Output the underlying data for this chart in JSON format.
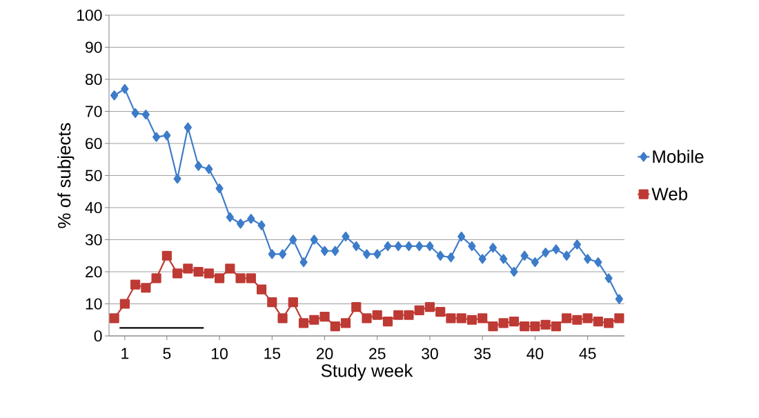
{
  "chart_data": {
    "type": "line",
    "xlabel": "Study week",
    "ylabel": "% of subjects",
    "x": [
      0,
      1,
      2,
      3,
      4,
      5,
      6,
      7,
      8,
      9,
      10,
      11,
      12,
      13,
      14,
      15,
      16,
      17,
      18,
      19,
      20,
      21,
      22,
      23,
      24,
      25,
      26,
      27,
      28,
      29,
      30,
      31,
      32,
      33,
      34,
      35,
      36,
      37,
      38,
      39,
      40,
      41,
      42,
      43,
      44,
      45,
      46,
      47,
      48
    ],
    "xlim": [
      -0.5,
      48.5
    ],
    "xticks": [
      1,
      5,
      10,
      15,
      20,
      25,
      30,
      35,
      40,
      45
    ],
    "ylim": [
      0,
      100
    ],
    "yticks": [
      0,
      10,
      20,
      30,
      40,
      50,
      60,
      70,
      80,
      90,
      100
    ],
    "grid": "y",
    "legend": "right",
    "series": [
      {
        "name": "Mobile",
        "color": "#3d7cc9",
        "marker": "diamond",
        "values": [
          75,
          77,
          69.5,
          69,
          62,
          62.5,
          49,
          65,
          53,
          52,
          46,
          37,
          35,
          36.5,
          34.5,
          25.5,
          25.5,
          30,
          23,
          30,
          26.5,
          26.5,
          31,
          28,
          25.5,
          25.5,
          28,
          28,
          28,
          28,
          28,
          25,
          24.5,
          31,
          28,
          24,
          27.5,
          24,
          20,
          25,
          23,
          26,
          27,
          25,
          28.5,
          24,
          23,
          18,
          11.5
        ]
      },
      {
        "name": "Web",
        "color": "#be3a34",
        "marker": "square",
        "values": [
          5.5,
          10,
          16,
          15,
          18,
          25,
          19.5,
          21,
          20,
          19.5,
          18,
          21,
          18,
          18,
          14.5,
          10.5,
          5.5,
          10.5,
          4,
          5,
          6,
          3,
          4,
          9,
          5.5,
          6.5,
          4.5,
          6.5,
          6.5,
          8,
          9,
          7.5,
          5.5,
          5.5,
          5,
          5.5,
          3,
          4,
          4.5,
          3,
          3,
          3.5,
          3,
          5.5,
          5,
          5.5,
          4.5,
          4,
          5.5
        ]
      },
      {
        "color": "#000000",
        "marker": "none",
        "x": [
          0.5,
          8.5
        ],
        "values": [
          2.5,
          2.5
        ]
      }
    ]
  }
}
